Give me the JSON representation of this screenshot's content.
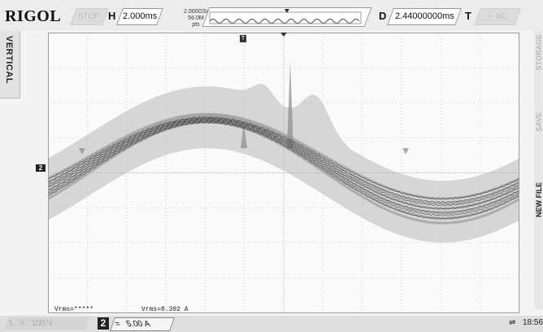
{
  "header": {
    "brand": "RIGOL",
    "run_state": "STOP",
    "timebase_label": "H",
    "timebase_value": "2.000ms",
    "sample_rate": "2.000GSa/s",
    "memory_depth": "56.0M pts",
    "delay_label": "D",
    "delay_value": "2.44000000ms",
    "trigger_label": "T",
    "trigger_info": "AC"
  },
  "left_tab": {
    "label": "VERTICAL"
  },
  "right_menu": {
    "items": [
      "STORAGE",
      "SAVE",
      "NEW FILE"
    ]
  },
  "display": {
    "channel_marker": "2",
    "trigger_marker": "T",
    "grid_divisions": {
      "horizontal": 12,
      "vertical": 8
    }
  },
  "measurements": {
    "ch1_vrms": "Vrms=*****",
    "ch2_vrms": "Vrms=8.392 A"
  },
  "channels": {
    "ch1": {
      "number": "1",
      "coupling": "=",
      "scale": "100 V"
    },
    "ch2": {
      "number": "2",
      "coupling": "=",
      "scale": "5.00 A"
    }
  },
  "status": {
    "usb_icon": "usb-icon",
    "clock": "18:56"
  },
  "colors": {
    "trace_dark": "#1a1a1a",
    "trace_mid": "#8a8a8a",
    "trace_light": "#cfcfcf"
  }
}
